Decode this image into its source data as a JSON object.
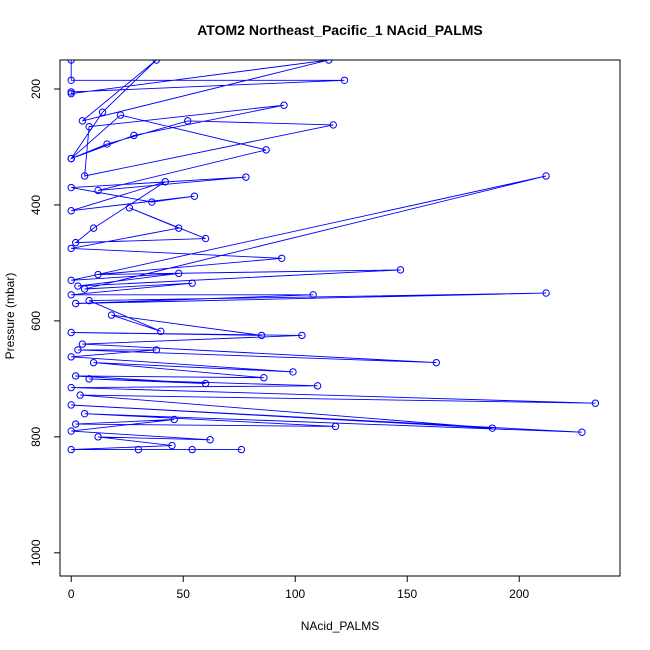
{
  "chart_data": {
    "type": "line",
    "title": "ATOM2 Northeast_Pacific_1 NAcid_PALMS",
    "xlabel": "NAcid_PALMS",
    "ylabel": "Pressure (mbar)",
    "xlim": [
      -5,
      245
    ],
    "ylim": [
      1040,
      150
    ],
    "y_reversed": true,
    "x_ticks": [
      0,
      50,
      100,
      150,
      200
    ],
    "y_ticks": [
      200,
      400,
      600,
      800,
      1000
    ],
    "grid": false,
    "legend": "none",
    "series_color": "#0000FF",
    "series": [
      {
        "points": [
          [
            0,
            150
          ],
          [
            0,
            185
          ],
          [
            122,
            185
          ],
          [
            0,
            205
          ],
          [
            0,
            208
          ],
          [
            115,
            150
          ],
          [
            5,
            255
          ],
          [
            38,
            150
          ],
          [
            14,
            240
          ],
          [
            0,
            320
          ],
          [
            28,
            280
          ],
          [
            95,
            228
          ],
          [
            8,
            265
          ],
          [
            6,
            350
          ],
          [
            117,
            262
          ],
          [
            52,
            255
          ],
          [
            16,
            295
          ],
          [
            0,
            320
          ],
          [
            22,
            245
          ],
          [
            87,
            305
          ],
          [
            12,
            375
          ],
          [
            78,
            352
          ],
          [
            0,
            370
          ],
          [
            36,
            395
          ],
          [
            55,
            385
          ],
          [
            0,
            410
          ],
          [
            42,
            360
          ],
          [
            10,
            440
          ],
          [
            2,
            465
          ],
          [
            60,
            458
          ],
          [
            26,
            405
          ],
          [
            48,
            440
          ],
          [
            0,
            475
          ],
          [
            94,
            492
          ],
          [
            12,
            520
          ],
          [
            147,
            512
          ],
          [
            3,
            540
          ],
          [
            48,
            518
          ],
          [
            0,
            530
          ],
          [
            212,
            350
          ],
          [
            6,
            545
          ],
          [
            54,
            535
          ],
          [
            0,
            555
          ],
          [
            108,
            555
          ],
          [
            2,
            570
          ],
          [
            212,
            552
          ],
          [
            8,
            565
          ],
          [
            40,
            618
          ],
          [
            18,
            590
          ],
          [
            85,
            625
          ],
          [
            0,
            620
          ],
          [
            103,
            625
          ],
          [
            5,
            640
          ],
          [
            163,
            672
          ],
          [
            3,
            650
          ],
          [
            38,
            650
          ],
          [
            0,
            662
          ],
          [
            99,
            688
          ],
          [
            10,
            672
          ],
          [
            86,
            698
          ],
          [
            2,
            695
          ],
          [
            60,
            708
          ],
          [
            8,
            700
          ],
          [
            110,
            712
          ],
          [
            0,
            715
          ],
          [
            234,
            742
          ],
          [
            4,
            728
          ],
          [
            188,
            785
          ],
          [
            0,
            745
          ],
          [
            228,
            792
          ],
          [
            6,
            760
          ],
          [
            118,
            782
          ],
          [
            2,
            778
          ],
          [
            46,
            770
          ],
          [
            0,
            790
          ],
          [
            62,
            805
          ],
          [
            12,
            800
          ],
          [
            45,
            815
          ],
          [
            0,
            822
          ],
          [
            76,
            822
          ],
          [
            30,
            822
          ],
          [
            54,
            822
          ]
        ]
      }
    ]
  }
}
